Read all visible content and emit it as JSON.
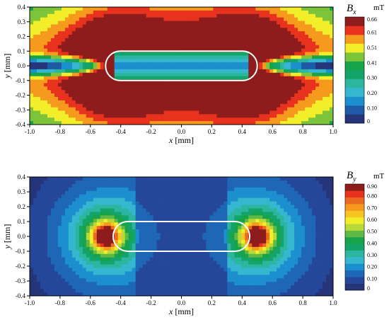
{
  "chart_data": [
    {
      "type": "heatmap",
      "colorbar": {
        "symbol": "B",
        "subscript": "x",
        "unit": "mT",
        "tick_labels": [
          "0",
          "0.10",
          "0.20",
          "0.30",
          "0.41",
          "0.51",
          "0.61",
          "0.66"
        ],
        "min": 0,
        "max": 0.66
      },
      "xlabel": {
        "var": "x",
        "unit": "[mm]"
      },
      "ylabel": {
        "var": "y",
        "unit": "[mm]"
      },
      "xlim": [
        -1.0,
        1.0
      ],
      "ylim": [
        -0.4,
        0.4
      ],
      "x_ticks": [
        "-1.0",
        "-0.8",
        "-0.6",
        "-0.4",
        "-0.2",
        "0.0",
        "0.2",
        "0.4",
        "0.6",
        "0.8",
        "1.0"
      ],
      "y_ticks": [
        "-0.4",
        "-0.3",
        "-0.2",
        "-0.1",
        "0.0",
        "0.1",
        "0.2",
        "0.3",
        "0.4"
      ],
      "stadium_outline": {
        "x_range": [
          -0.5,
          0.5
        ],
        "y_range": [
          -0.1,
          0.1
        ]
      },
      "palette": [
        "#26347a",
        "#1e5aa6",
        "#1c8fcf",
        "#35b7cf",
        "#2cb59f",
        "#14a46a",
        "#16a34a",
        "#7cc43a",
        "#f2ef2a",
        "#f59a1c",
        "#e8321e",
        "#8e1c1c"
      ]
    },
    {
      "type": "heatmap",
      "colorbar": {
        "symbol": "B",
        "subscript": "y",
        "unit": "mT",
        "tick_labels": [
          "0",
          "0.10",
          "0.20",
          "0.30",
          "0.40",
          "0.50",
          "0.60",
          "0.70",
          "0.80",
          "0.90"
        ],
        "min": 0,
        "max": 0.9
      },
      "xlabel": {
        "var": "x",
        "unit": "[mm]"
      },
      "ylabel": {
        "var": "y",
        "unit": "[mm]"
      },
      "xlim": [
        -1.0,
        1.0
      ],
      "ylim": [
        -0.4,
        0.4
      ],
      "x_ticks": [
        "-1.0",
        "-0.8",
        "-0.6",
        "-0.4",
        "-0.2",
        "0.0",
        "0.2",
        "0.4",
        "0.6",
        "0.8",
        "1.0"
      ],
      "y_ticks": [
        "-0.4",
        "-0.3",
        "-0.2",
        "-0.1",
        "0.0",
        "0.1",
        "0.2",
        "0.3",
        "0.4"
      ],
      "stadium_outline": {
        "x_range": [
          -0.45,
          0.45
        ],
        "y_range": [
          -0.1,
          0.1
        ]
      },
      "palette": [
        "#26347a",
        "#25479a",
        "#1e66b6",
        "#1c8fcf",
        "#35b7cf",
        "#2cb59f",
        "#14a46a",
        "#16a34a",
        "#60b944",
        "#b8d93a",
        "#f2ef2a",
        "#f7c421",
        "#f59a1c",
        "#ea6a1f",
        "#e8321e",
        "#8e1c1c"
      ]
    }
  ]
}
